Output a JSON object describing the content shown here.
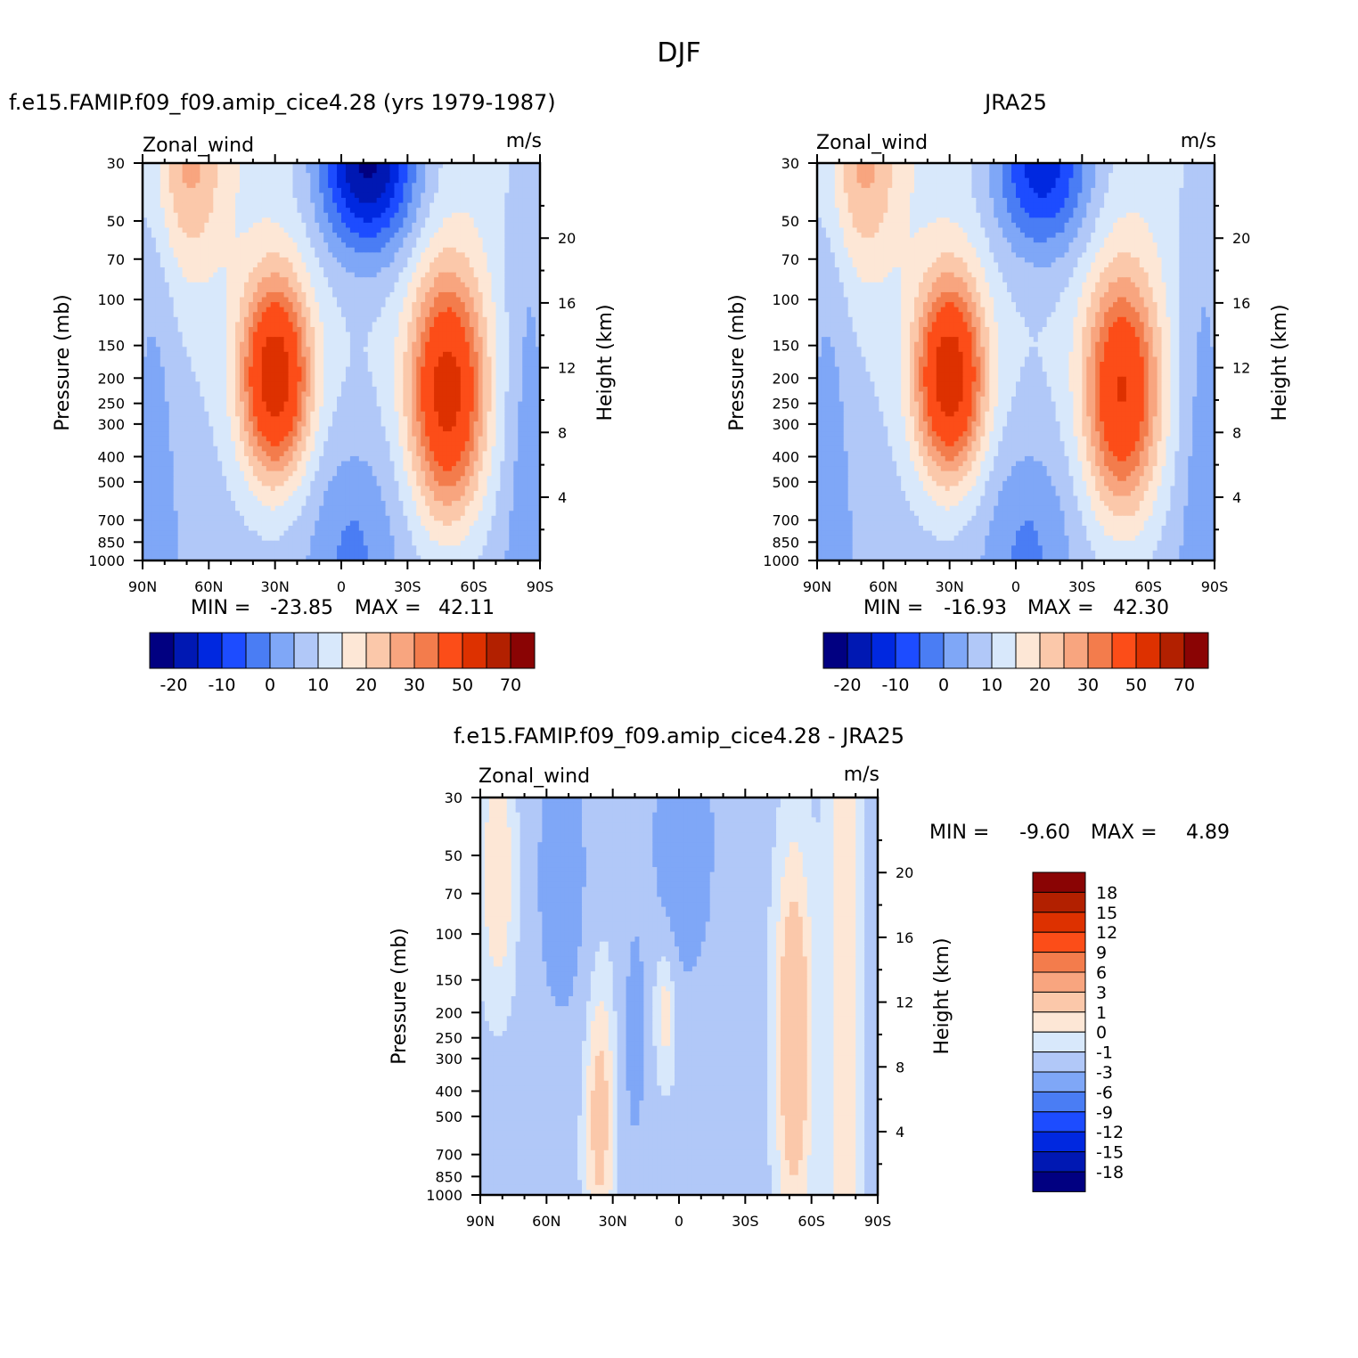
{
  "figure": {
    "title": "DJF"
  },
  "colors": {
    "ref_palette": [
      "#010081",
      "#0018b3",
      "#0028e0",
      "#1d4cff",
      "#4a7df4",
      "#7fa7f7",
      "#b1c8f8",
      "#d8e8fb",
      "#fde7d6",
      "#fbc8aa",
      "#f8a57f",
      "#f37c4c",
      "#fc4d18",
      "#dd3100",
      "#b22000",
      "#8a0404"
    ],
    "diff_palette": [
      "#010081",
      "#0018b3",
      "#0028e0",
      "#1d4cff",
      "#4a7df4",
      "#7fa7f7",
      "#b1c8f8",
      "#d8e8fb",
      "#fde7d6",
      "#fbc8aa",
      "#f8a57f",
      "#f37c4c",
      "#fc4d18",
      "#dd3100",
      "#b22000",
      "#8a0404"
    ]
  },
  "chart_data": [
    {
      "type": "heatmap",
      "subtitle": "f.e15.FAMIP.f09_f09.amip_cice4.28 (yrs 1979-1987)",
      "variable": "Zonal_wind",
      "units": "m/s",
      "ylabel": "Pressure (mb)",
      "ylabel_right": "Height (km)",
      "x_ticks": [
        "90N",
        "60N",
        "30N",
        "0",
        "30S",
        "60S",
        "90S"
      ],
      "y_ticks": [
        30,
        50,
        70,
        100,
        150,
        200,
        250,
        300,
        400,
        500,
        700,
        850,
        1000
      ],
      "y_ticks_right": [
        20,
        16,
        12,
        8,
        4
      ],
      "y_scale": "log",
      "min_label": "MIN =",
      "min_value": "-23.85",
      "max_label": "MAX =",
      "max_value": "42.11",
      "colorbar": {
        "orientation": "horizontal",
        "labels": [
          "-20",
          "-10",
          "0",
          "10",
          "20",
          "30",
          "50",
          "70"
        ]
      },
      "jets": [
        {
          "lat": 30,
          "p": 200,
          "peak": 42.11
        },
        {
          "lat": -48,
          "p": 220,
          "peak": 38
        },
        {
          "lat": -15,
          "p": 30,
          "peak": -23.85
        }
      ]
    },
    {
      "type": "heatmap",
      "subtitle": "JRA25",
      "variable": "Zonal_wind",
      "units": "m/s",
      "ylabel": "Pressure (mb)",
      "ylabel_right": "Height (km)",
      "x_ticks": [
        "90N",
        "60N",
        "30N",
        "0",
        "30S",
        "60S",
        "90S"
      ],
      "y_ticks": [
        30,
        50,
        70,
        100,
        150,
        200,
        250,
        300,
        400,
        500,
        700,
        850,
        1000
      ],
      "y_ticks_right": [
        20,
        16,
        12,
        8,
        4
      ],
      "y_scale": "log",
      "min_label": "MIN =",
      "min_value": "-16.93",
      "max_label": "MAX =",
      "max_value": "42.30",
      "colorbar": {
        "orientation": "horizontal",
        "labels": [
          "-20",
          "-10",
          "0",
          "10",
          "20",
          "30",
          "50",
          "70"
        ]
      },
      "jets": [
        {
          "lat": 30,
          "p": 200,
          "peak": 42.3
        },
        {
          "lat": -48,
          "p": 230,
          "peak": 36
        },
        {
          "lat": -15,
          "p": 30,
          "peak": -16.93
        }
      ]
    },
    {
      "type": "heatmap",
      "subtitle": "f.e15.FAMIP.f09_f09.amip_cice4.28 - JRA25",
      "variable": "Zonal_wind",
      "units": "m/s",
      "ylabel": "Pressure (mb)",
      "ylabel_right": "Height (km)",
      "x_ticks": [
        "90N",
        "60N",
        "30N",
        "0",
        "30S",
        "60S",
        "90S"
      ],
      "y_ticks": [
        30,
        50,
        70,
        100,
        150,
        200,
        250,
        300,
        400,
        500,
        700,
        850,
        1000
      ],
      "y_ticks_right": [
        20,
        16,
        12,
        8,
        4
      ],
      "y_scale": "log",
      "min_label": "MIN =",
      "min_value": "-9.60",
      "max_label": "MAX =",
      "max_value": "4.89",
      "colorbar": {
        "orientation": "vertical",
        "labels": [
          "18",
          "15",
          "12",
          "9",
          "6",
          "3",
          "1",
          "0",
          "-1",
          "-3",
          "-6",
          "-9",
          "-12",
          "-15",
          "-18"
        ]
      }
    }
  ]
}
